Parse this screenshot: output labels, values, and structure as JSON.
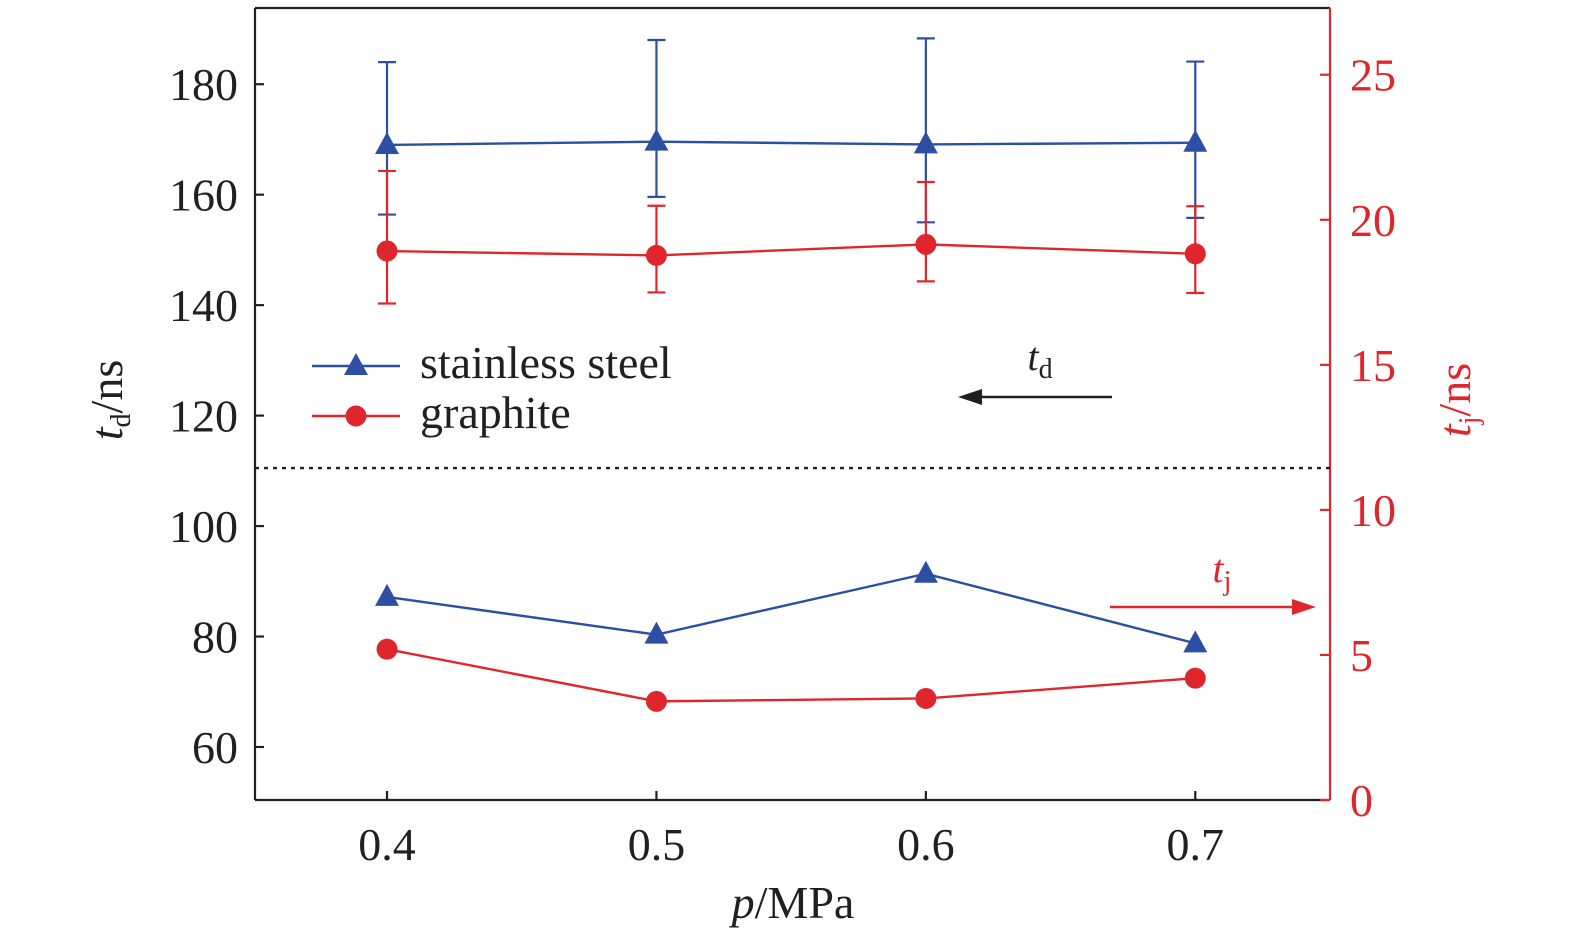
{
  "chart_data": {
    "type": "line",
    "x": [
      0.4,
      0.5,
      0.6,
      0.7
    ],
    "x_ticks": [
      "0.4",
      "0.5",
      "0.6",
      "0.7"
    ],
    "xlim": [
      0.351,
      0.75
    ],
    "xlabel": {
      "var": "p",
      "unit": "/MPa"
    },
    "left_axis": {
      "label": {
        "var": "t",
        "sub": "d",
        "unit": "/ns"
      },
      "ylim": [
        50.4,
        193.8
      ],
      "ticks": [
        60,
        80,
        100,
        120,
        140,
        160,
        180
      ],
      "tick_labels": [
        "60",
        "80",
        "100",
        "120",
        "140",
        "160",
        "180"
      ],
      "color": "#231f20"
    },
    "right_axis": {
      "label": {
        "var": "t",
        "sub": "j",
        "unit": "/ns"
      },
      "ylim": [
        0,
        27.3
      ],
      "ticks": [
        0,
        5,
        10,
        15,
        20,
        25
      ],
      "tick_labels": [
        "0",
        "5",
        "10",
        "15",
        "20",
        "25"
      ],
      "color": "#e0262d"
    },
    "series": [
      {
        "name": "stainless steel",
        "quantity": "td",
        "axis": "left",
        "marker": "triangle",
        "color": "#2c4ea3",
        "values": [
          169,
          169.6,
          169.1,
          169.4
        ],
        "err_plus": [
          15,
          18.4,
          19.2,
          14.7
        ],
        "err_minus": [
          12.6,
          10,
          14.1,
          13.6
        ]
      },
      {
        "name": "graphite",
        "quantity": "td",
        "axis": "left",
        "marker": "circle",
        "color": "#e0262d",
        "values": [
          149.8,
          149,
          151,
          149.3
        ],
        "err_plus": [
          14.5,
          9,
          11.3,
          8.6
        ],
        "err_minus": [
          9.5,
          6.7,
          6.7,
          7.1
        ]
      },
      {
        "name": "stainless steel",
        "quantity": "tj",
        "axis": "right",
        "marker": "triangle",
        "color": "#2c4ea3",
        "values": [
          7,
          5.7,
          7.8,
          5.4
        ]
      },
      {
        "name": "graphite",
        "quantity": "tj",
        "axis": "right",
        "marker": "circle",
        "color": "#e0262d",
        "values": [
          5.2,
          3.4,
          3.5,
          4.2
        ]
      }
    ],
    "legend": {
      "placement": "middle-left",
      "entries": [
        {
          "label": "stainless steel",
          "marker": "triangle",
          "color": "#2c4ea3"
        },
        {
          "label": "graphite",
          "marker": "circle",
          "color": "#e0262d"
        }
      ]
    },
    "divider": {
      "style": "dotted",
      "at_left_value": 110.5
    },
    "annotations": [
      {
        "var": "t",
        "sub": "d",
        "direction": "left",
        "color": "#231f20"
      },
      {
        "var": "t",
        "sub": "j",
        "direction": "right",
        "color": "#e0262d"
      }
    ],
    "grid": false
  }
}
